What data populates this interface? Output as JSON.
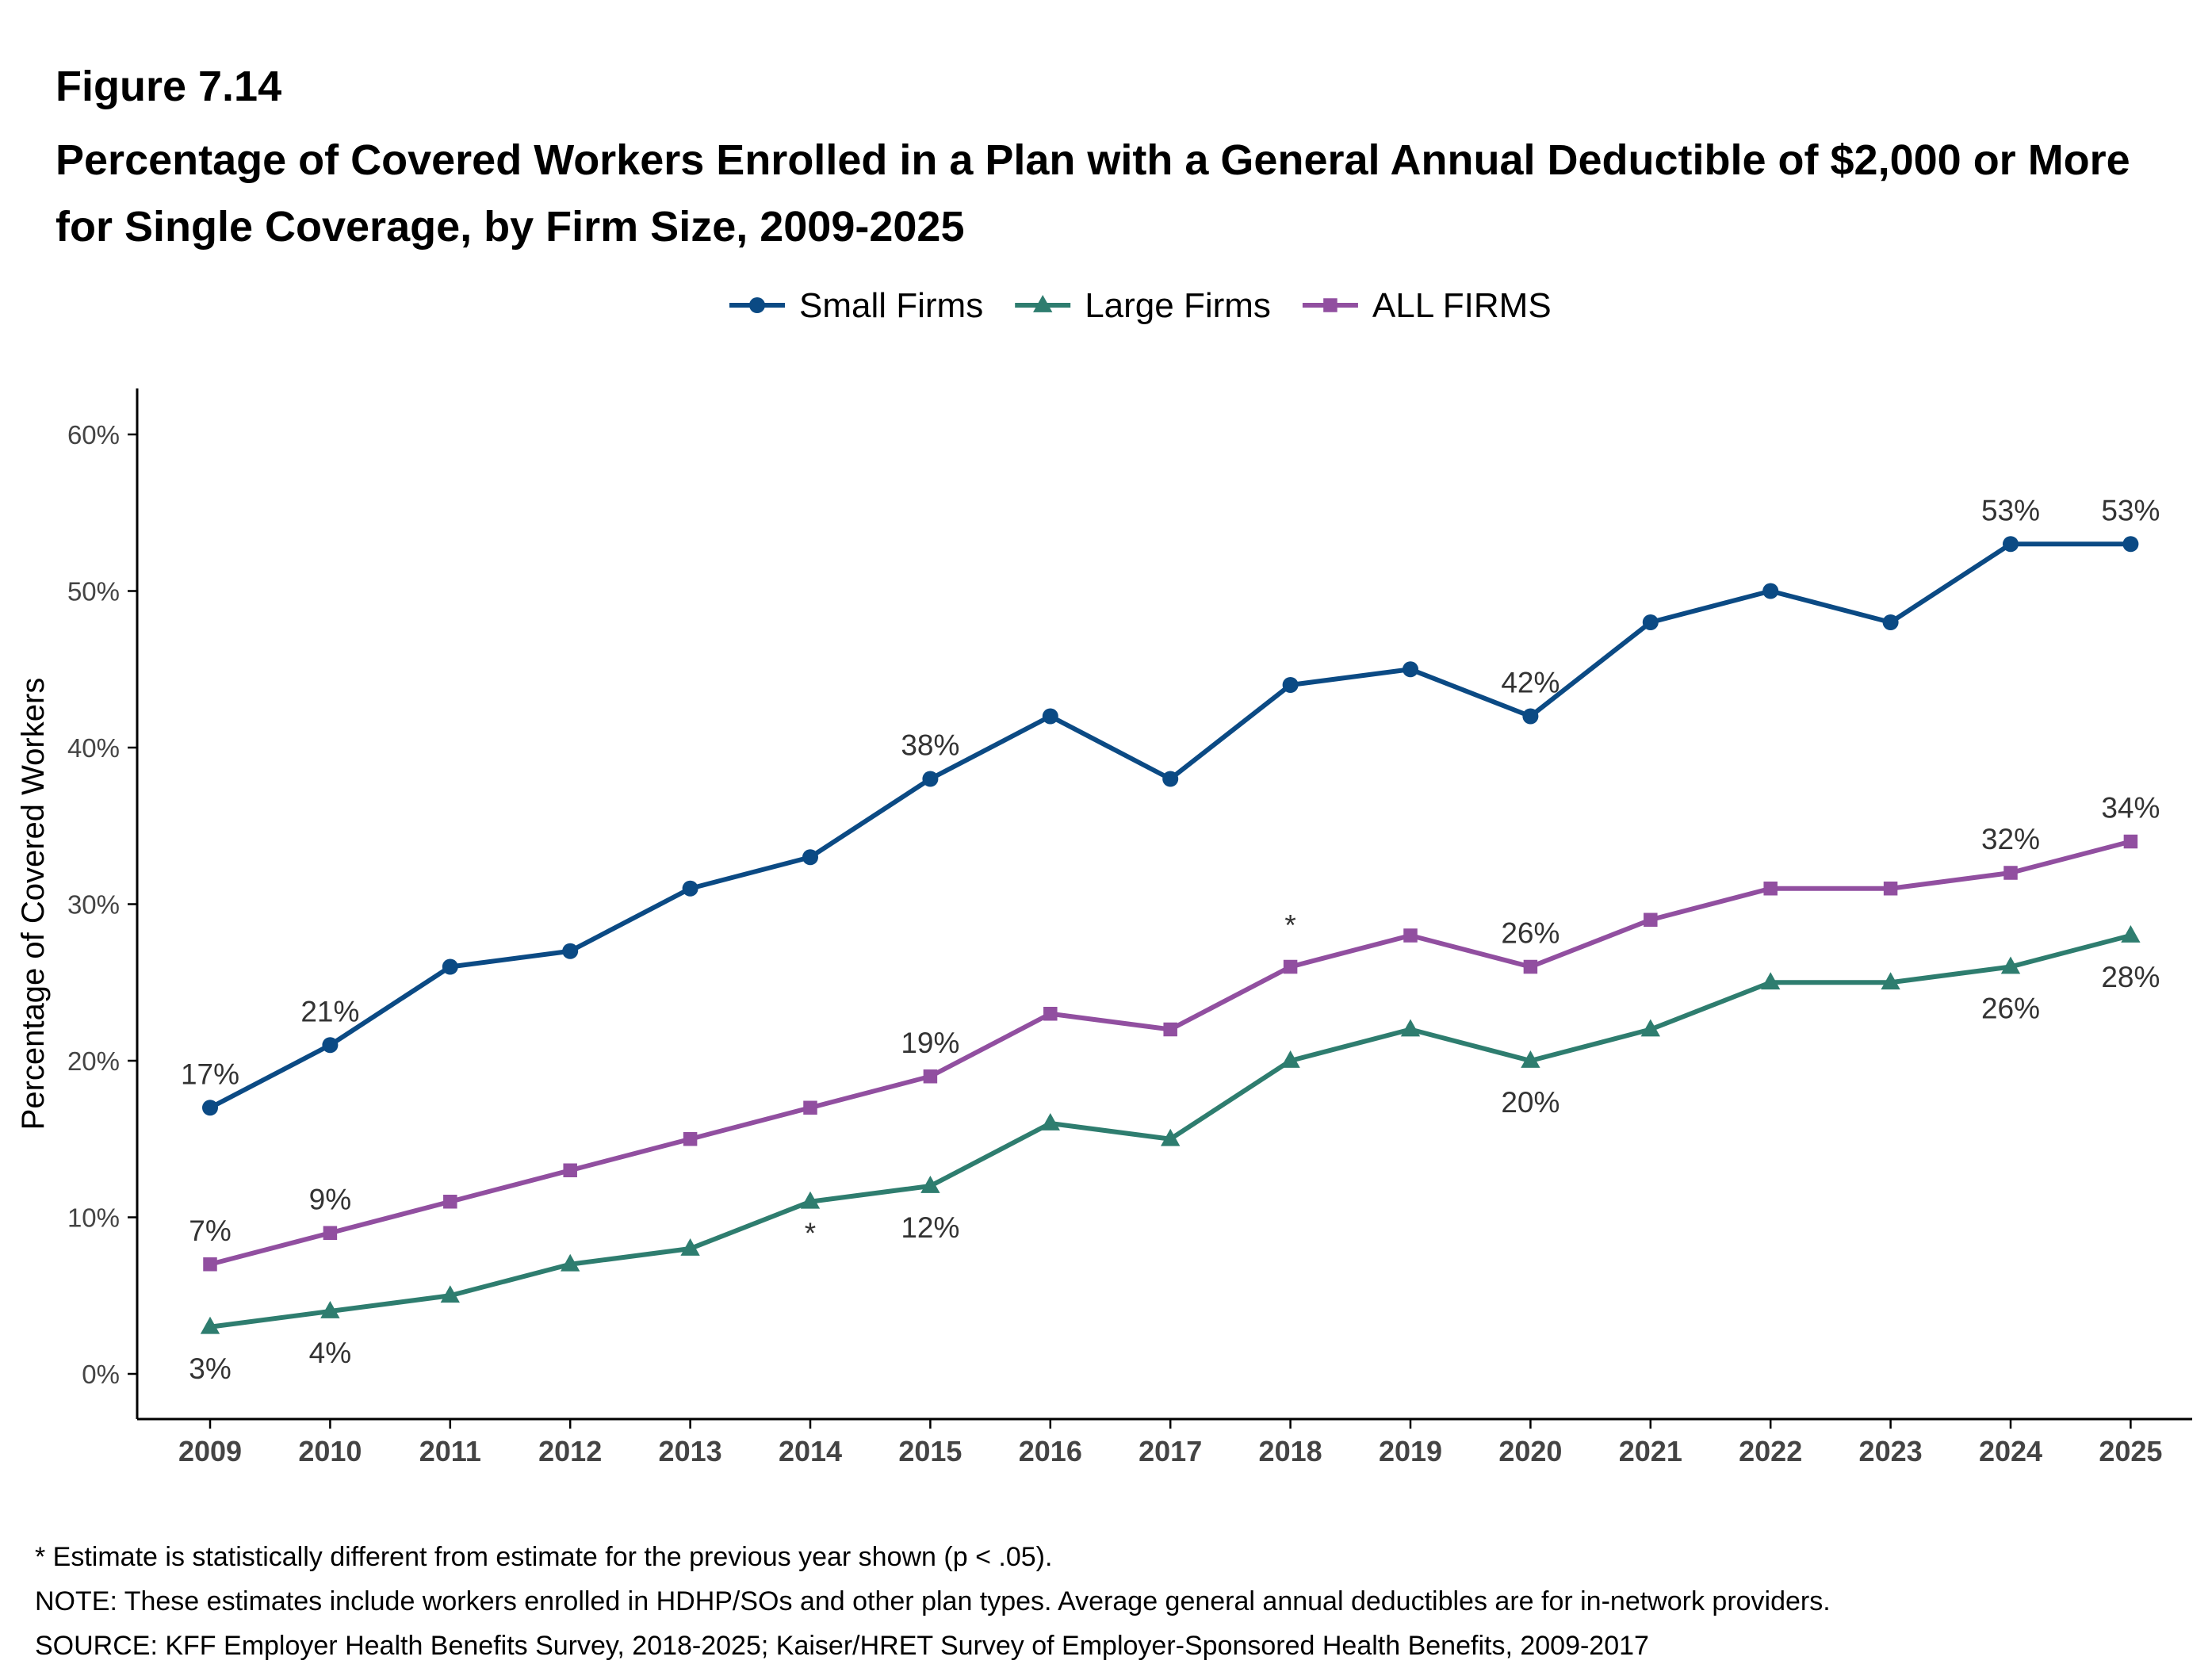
{
  "figure": {
    "label": "Figure 7.14",
    "title": "Percentage of Covered Workers Enrolled in a Plan with a General Annual Deductible of $2,000 or More for Single Coverage, by Firm Size, 2009-2025"
  },
  "chart_data": {
    "type": "line",
    "title": "Percentage of Covered Workers Enrolled in a Plan with a General Annual Deductible of $2,000 or More for Single Coverage, by Firm Size, 2009-2025",
    "xlabel": "",
    "ylabel": "Percentage of Covered Workers",
    "x": [
      "2009",
      "2010",
      "2011",
      "2012",
      "2013",
      "2014",
      "2015",
      "2016",
      "2017",
      "2018",
      "2019",
      "2020",
      "2021",
      "2022",
      "2023",
      "2024",
      "2025"
    ],
    "ylim": [
      0,
      60
    ],
    "yticks": [
      0,
      10,
      20,
      30,
      40,
      50,
      60
    ],
    "ytick_labels": [
      "0%",
      "10%",
      "20%",
      "30%",
      "40%",
      "50%",
      "60%"
    ],
    "grid": false,
    "legend_position": "top-center",
    "series": [
      {
        "name": "Small Firms",
        "color": "#0b4a84",
        "marker": "circle",
        "values": [
          17,
          21,
          26,
          27,
          31,
          33,
          38,
          42,
          38,
          44,
          45,
          42,
          48,
          50,
          48,
          53,
          53
        ],
        "data_labels": [
          {
            "x": "2009",
            "text": "17%",
            "placement": "above"
          },
          {
            "x": "2010",
            "text": "21%",
            "placement": "above"
          },
          {
            "x": "2015",
            "text": "38%",
            "placement": "above"
          },
          {
            "x": "2020",
            "text": "42%",
            "placement": "above"
          },
          {
            "x": "2024",
            "text": "53%",
            "placement": "above"
          },
          {
            "x": "2025",
            "text": "53%",
            "placement": "above"
          }
        ]
      },
      {
        "name": "Large Firms",
        "color": "#2e7d6f",
        "marker": "triangle",
        "values": [
          3,
          4,
          5,
          7,
          8,
          11,
          12,
          16,
          15,
          20,
          22,
          20,
          22,
          25,
          25,
          26,
          28
        ],
        "data_labels": [
          {
            "x": "2009",
            "text": "3%",
            "placement": "below"
          },
          {
            "x": "2010",
            "text": "4%",
            "placement": "below"
          },
          {
            "x": "2014",
            "text": "*",
            "placement": "below"
          },
          {
            "x": "2015",
            "text": "12%",
            "placement": "below"
          },
          {
            "x": "2020",
            "text": "20%",
            "placement": "below"
          },
          {
            "x": "2024",
            "text": "26%",
            "placement": "below"
          },
          {
            "x": "2025",
            "text": "28%",
            "placement": "below"
          }
        ]
      },
      {
        "name": "ALL FIRMS",
        "color": "#914fa0",
        "marker": "square",
        "values": [
          7,
          9,
          11,
          13,
          15,
          17,
          19,
          23,
          22,
          26,
          28,
          26,
          29,
          31,
          31,
          32,
          34
        ],
        "data_labels": [
          {
            "x": "2009",
            "text": "7%",
            "placement": "above"
          },
          {
            "x": "2010",
            "text": "9%",
            "placement": "above"
          },
          {
            "x": "2015",
            "text": "19%",
            "placement": "above"
          },
          {
            "x": "2018",
            "text": "*",
            "placement": "above"
          },
          {
            "x": "2020",
            "text": "26%",
            "placement": "above"
          },
          {
            "x": "2024",
            "text": "32%",
            "placement": "above"
          },
          {
            "x": "2025",
            "text": "34%",
            "placement": "above"
          }
        ]
      }
    ]
  },
  "footnotes": {
    "significance": "* Estimate is statistically different from estimate for the previous year shown (p < .05).",
    "note": "NOTE: These estimates include workers enrolled in HDHP/SOs and other plan types. Average general annual deductibles are for in-network providers.",
    "source": "SOURCE: KFF Employer Health Benefits Survey, 2018-2025; Kaiser/HRET Survey of Employer-Sponsored Health Benefits, 2009-2017"
  }
}
